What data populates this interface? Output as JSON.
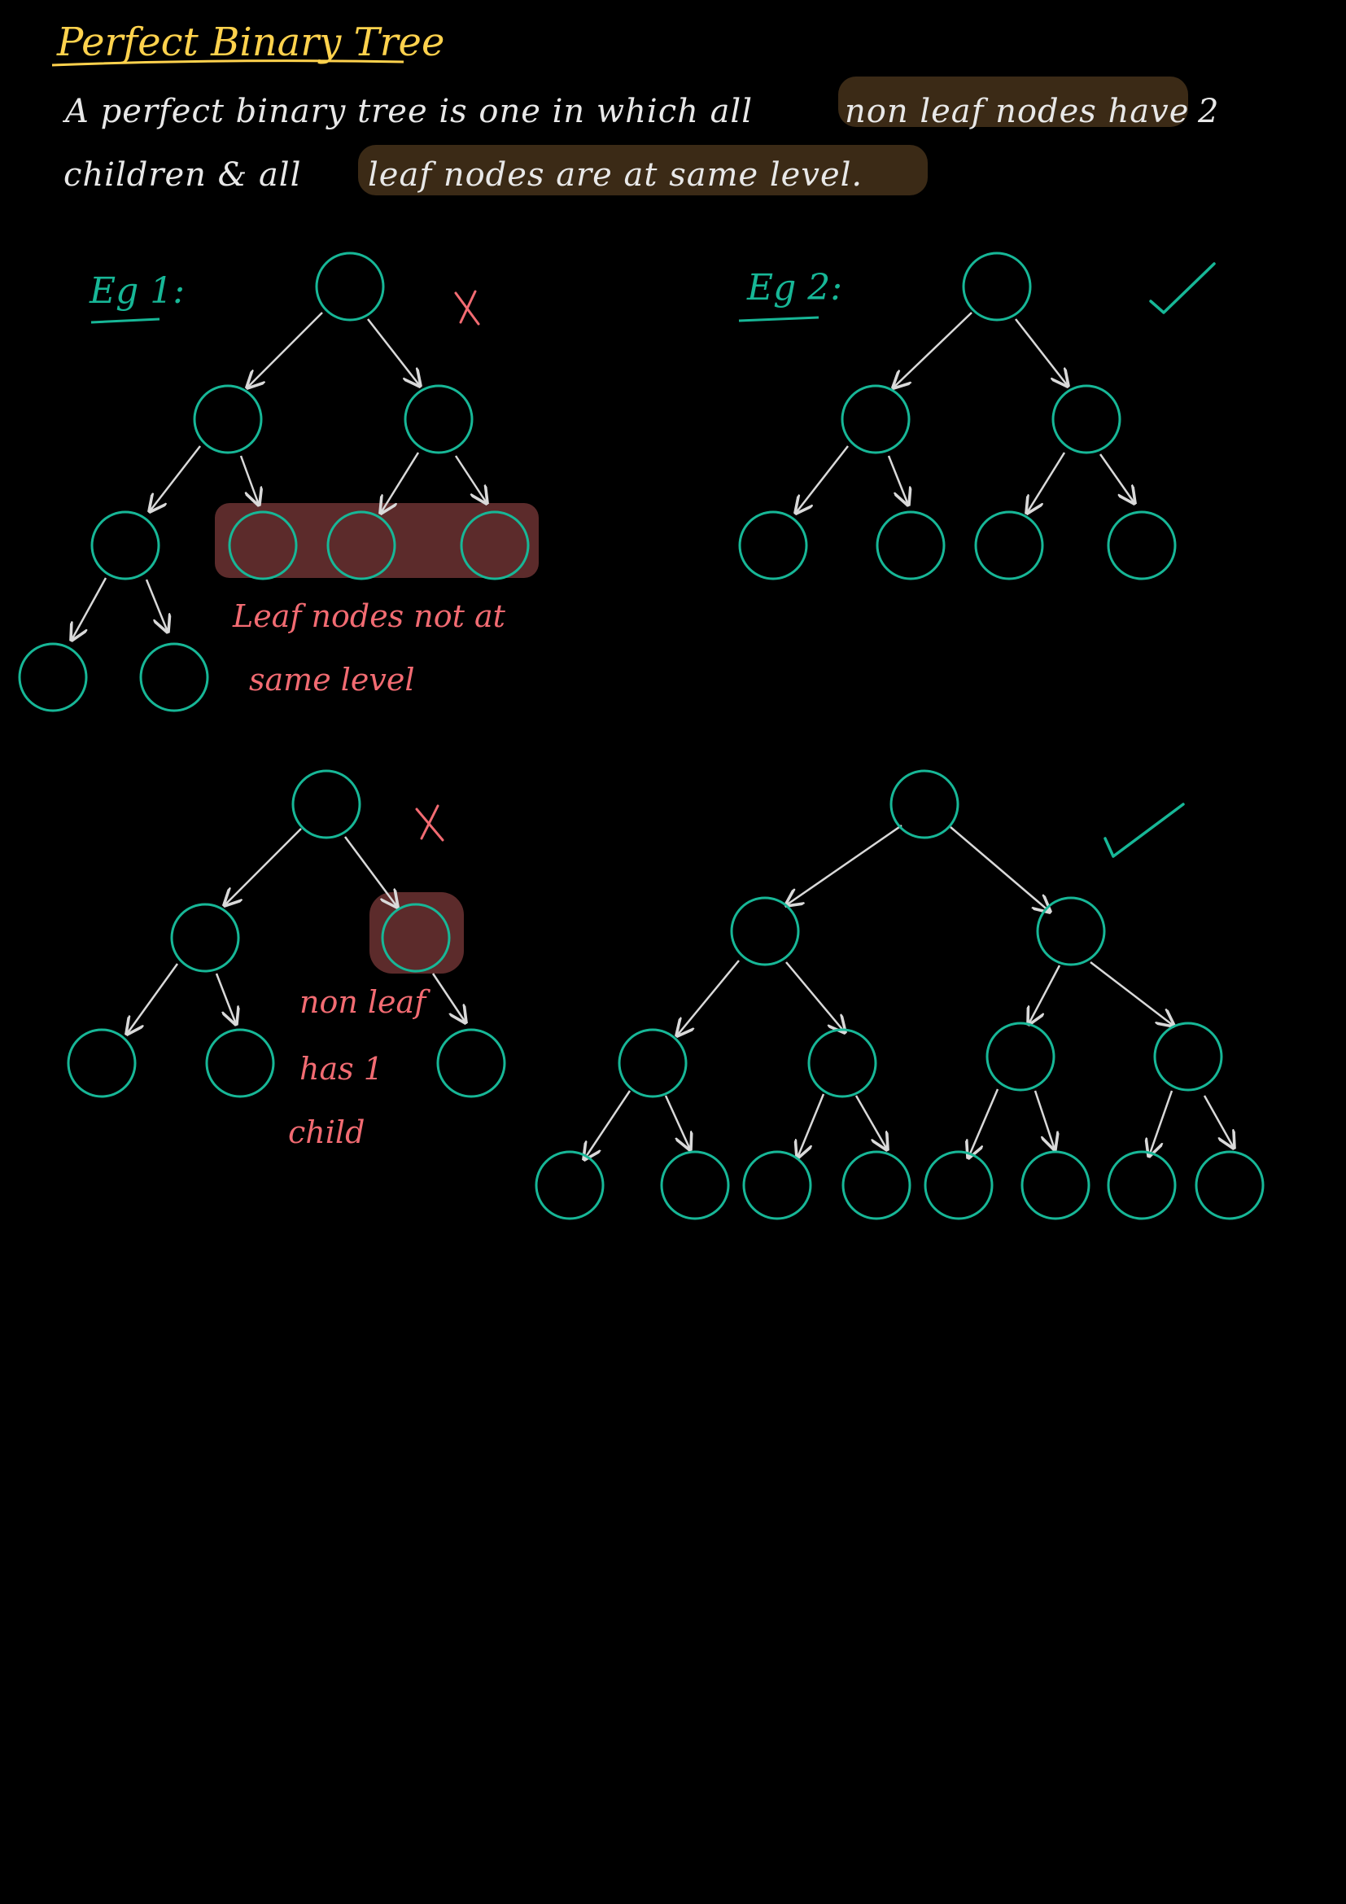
{
  "title": "Perfect Binary Tree",
  "definition": {
    "line1_a": "A perfect binary tree is one in which all",
    "line1_b": "non leaf nodes have",
    "line1_c": "2",
    "line2_a": "children & all",
    "line2_b": "leaf nodes are at same level."
  },
  "examples": {
    "eg1_label": "Eg 1:",
    "eg2_label": "Eg 2:"
  },
  "annotations": {
    "leaf_note_line1": "Leaf nodes not at",
    "leaf_note_line2": "same level",
    "nonleaf_note_line1": "non leaf",
    "nonleaf_note_line2": "has 1",
    "nonleaf_note_line3": "child"
  },
  "colors": {
    "background": "#000000",
    "title": "#ffd24d",
    "node_stroke": "#17b797",
    "edge": "#d9d9d9",
    "annotation": "#f26b72",
    "definition_highlight": "#3b2a16",
    "error_highlight": "#5c2b2b"
  },
  "trees": [
    {
      "id": "eg1",
      "valid": false,
      "nodes": [
        "A",
        "B",
        "C",
        "D",
        "E",
        "F",
        "G",
        "H",
        "I"
      ],
      "edges": [
        [
          "A",
          "B"
        ],
        [
          "A",
          "C"
        ],
        [
          "B",
          "D"
        ],
        [
          "B",
          "E"
        ],
        [
          "C",
          "F"
        ],
        [
          "C",
          "G"
        ],
        [
          "D",
          "H"
        ],
        [
          "D",
          "I"
        ]
      ],
      "highlighted_nodes": [
        "E",
        "F",
        "G"
      ]
    },
    {
      "id": "eg2",
      "valid": true,
      "nodes": [
        "A",
        "B",
        "C",
        "D",
        "E",
        "F",
        "G"
      ],
      "edges": [
        [
          "A",
          "B"
        ],
        [
          "A",
          "C"
        ],
        [
          "B",
          "D"
        ],
        [
          "B",
          "E"
        ],
        [
          "C",
          "F"
        ],
        [
          "C",
          "G"
        ]
      ],
      "highlighted_nodes": []
    },
    {
      "id": "eg3",
      "valid": false,
      "nodes": [
        "A",
        "B",
        "C",
        "D",
        "E",
        "F"
      ],
      "edges": [
        [
          "A",
          "B"
        ],
        [
          "A",
          "C"
        ],
        [
          "B",
          "D"
        ],
        [
          "B",
          "E"
        ],
        [
          "C",
          "F"
        ]
      ],
      "highlighted_nodes": [
        "C"
      ]
    },
    {
      "id": "eg4",
      "valid": true,
      "nodes": [
        "A",
        "B",
        "C",
        "D",
        "E",
        "F",
        "G",
        "H",
        "I",
        "J",
        "K",
        "L",
        "M",
        "N",
        "O"
      ],
      "edges": [
        [
          "A",
          "B"
        ],
        [
          "A",
          "C"
        ],
        [
          "B",
          "D"
        ],
        [
          "B",
          "E"
        ],
        [
          "C",
          "F"
        ],
        [
          "C",
          "G"
        ],
        [
          "D",
          "H"
        ],
        [
          "D",
          "I"
        ],
        [
          "E",
          "J"
        ],
        [
          "E",
          "K"
        ],
        [
          "F",
          "L"
        ],
        [
          "F",
          "M"
        ],
        [
          "G",
          "N"
        ],
        [
          "G",
          "O"
        ]
      ],
      "highlighted_nodes": []
    }
  ]
}
